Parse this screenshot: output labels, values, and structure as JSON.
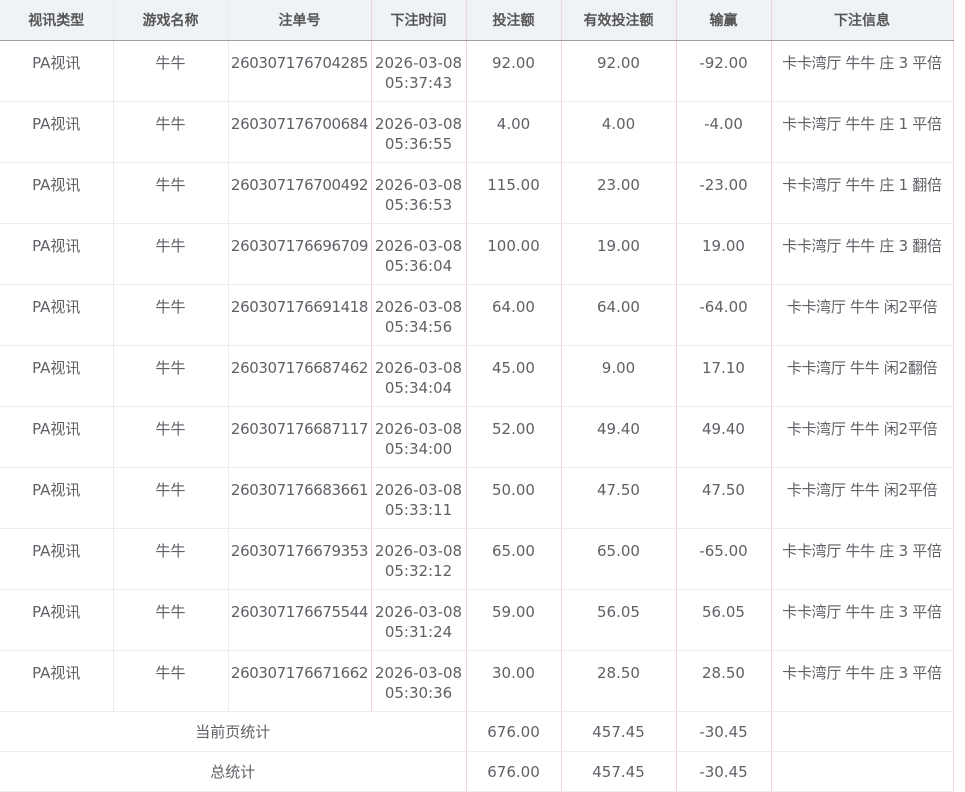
{
  "columns": [
    "视讯类型",
    "游戏名称",
    "注单号",
    "下注时间",
    "投注额",
    "有效投注额",
    "输赢",
    "下注信息"
  ],
  "rows": [
    {
      "type": "PA视讯",
      "game": "牛牛",
      "order": "260307176704285",
      "date": "2026-03-08",
      "time": "05:37:43",
      "bet": "92.00",
      "valid": "92.00",
      "win": "-92.00",
      "info": "卡卡湾厅 牛牛 庄 3 平倍"
    },
    {
      "type": "PA视讯",
      "game": "牛牛",
      "order": "260307176700684",
      "date": "2026-03-08",
      "time": "05:36:55",
      "bet": "4.00",
      "valid": "4.00",
      "win": "-4.00",
      "info": "卡卡湾厅 牛牛 庄 1 平倍"
    },
    {
      "type": "PA视讯",
      "game": "牛牛",
      "order": "260307176700492",
      "date": "2026-03-08",
      "time": "05:36:53",
      "bet": "115.00",
      "valid": "23.00",
      "win": "-23.00",
      "info": "卡卡湾厅 牛牛 庄 1 翻倍"
    },
    {
      "type": "PA视讯",
      "game": "牛牛",
      "order": "260307176696709",
      "date": "2026-03-08",
      "time": "05:36:04",
      "bet": "100.00",
      "valid": "19.00",
      "win": "19.00",
      "info": "卡卡湾厅 牛牛 庄 3 翻倍"
    },
    {
      "type": "PA视讯",
      "game": "牛牛",
      "order": "260307176691418",
      "date": "2026-03-08",
      "time": "05:34:56",
      "bet": "64.00",
      "valid": "64.00",
      "win": "-64.00",
      "info": "卡卡湾厅 牛牛 闲2平倍"
    },
    {
      "type": "PA视讯",
      "game": "牛牛",
      "order": "260307176687462",
      "date": "2026-03-08",
      "time": "05:34:04",
      "bet": "45.00",
      "valid": "9.00",
      "win": "17.10",
      "info": "卡卡湾厅 牛牛 闲2翻倍"
    },
    {
      "type": "PA视讯",
      "game": "牛牛",
      "order": "260307176687117",
      "date": "2026-03-08",
      "time": "05:34:00",
      "bet": "52.00",
      "valid": "49.40",
      "win": "49.40",
      "info": "卡卡湾厅 牛牛 闲2平倍"
    },
    {
      "type": "PA视讯",
      "game": "牛牛",
      "order": "260307176683661",
      "date": "2026-03-08",
      "time": "05:33:11",
      "bet": "50.00",
      "valid": "47.50",
      "win": "47.50",
      "info": "卡卡湾厅 牛牛 闲2平倍"
    },
    {
      "type": "PA视讯",
      "game": "牛牛",
      "order": "260307176679353",
      "date": "2026-03-08",
      "time": "05:32:12",
      "bet": "65.00",
      "valid": "65.00",
      "win": "-65.00",
      "info": "卡卡湾厅 牛牛 庄 3 平倍"
    },
    {
      "type": "PA视讯",
      "game": "牛牛",
      "order": "260307176675544",
      "date": "2026-03-08",
      "time": "05:31:24",
      "bet": "59.00",
      "valid": "56.05",
      "win": "56.05",
      "info": "卡卡湾厅 牛牛 庄 3 平倍"
    },
    {
      "type": "PA视讯",
      "game": "牛牛",
      "order": "260307176671662",
      "date": "2026-03-08",
      "time": "05:30:36",
      "bet": "30.00",
      "valid": "28.50",
      "win": "28.50",
      "info": "卡卡湾厅 牛牛 庄 3 平倍"
    }
  ],
  "summary": [
    {
      "label": "当前页统计",
      "bet": "676.00",
      "valid": "457.45",
      "win": "-30.45"
    },
    {
      "label": "总统计",
      "bet": "676.00",
      "valid": "457.45",
      "win": "-30.45"
    }
  ]
}
